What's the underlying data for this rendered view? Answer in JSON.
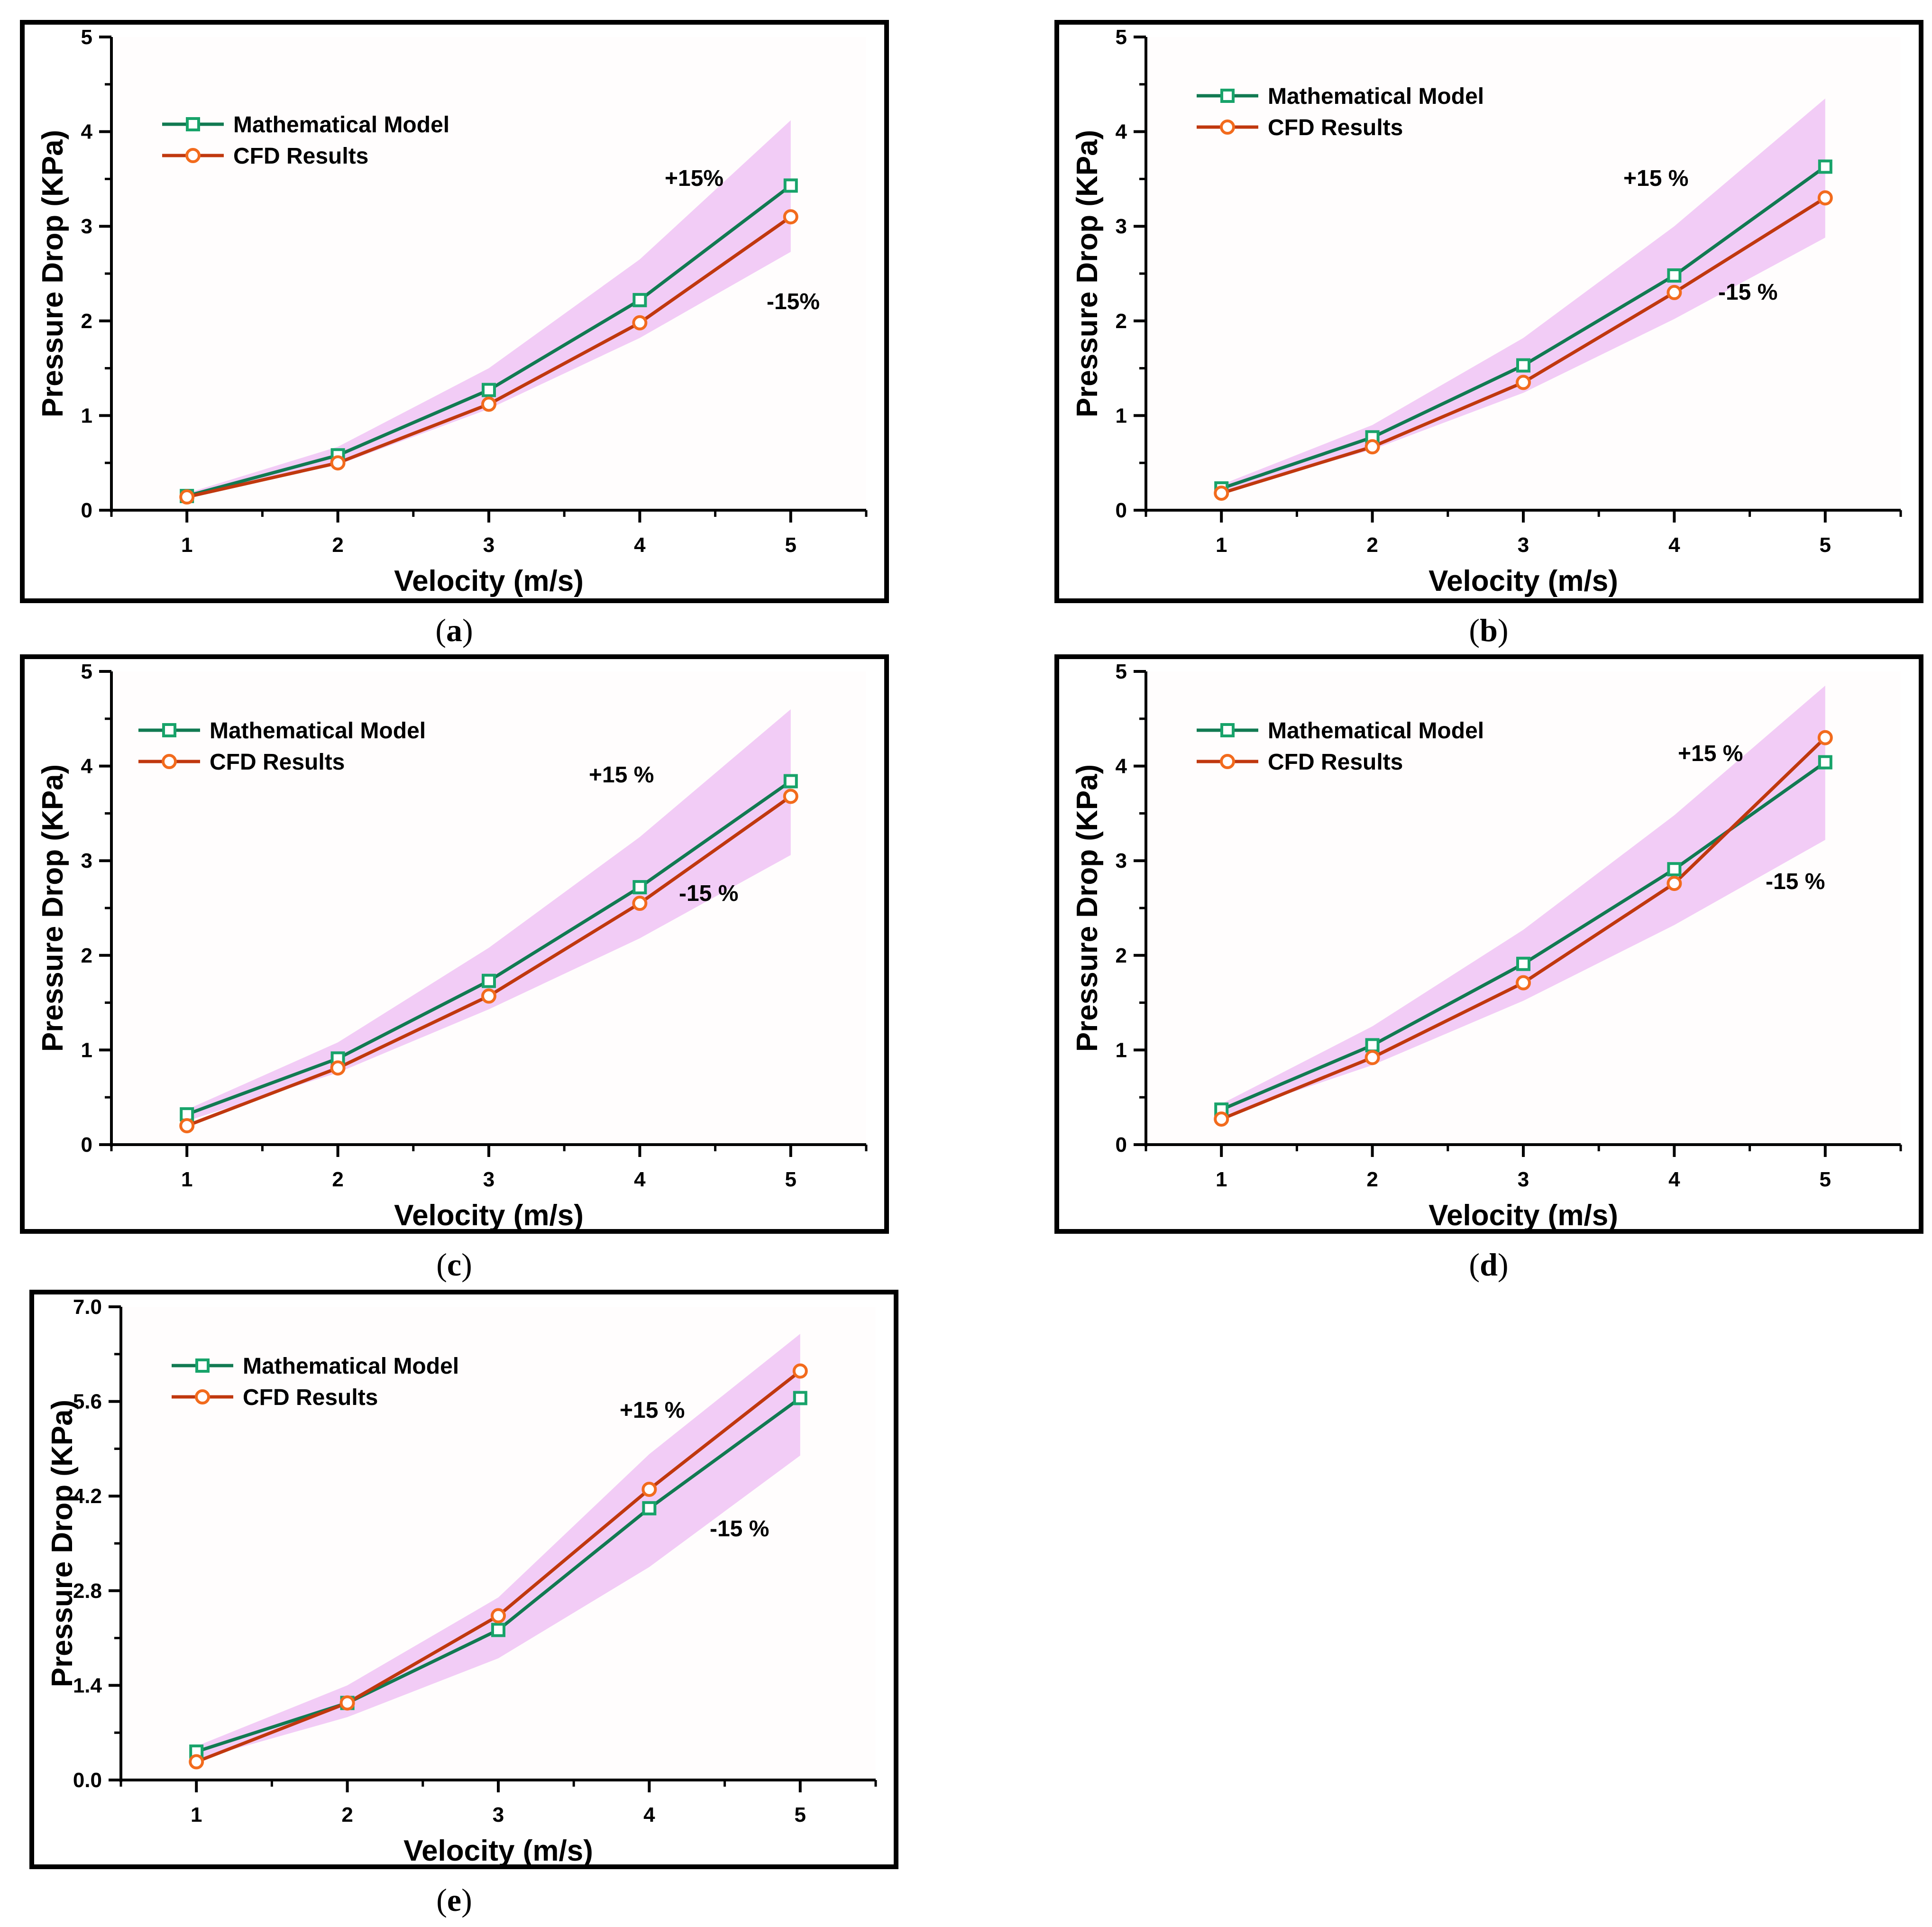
{
  "panels": [
    {
      "caption": "a",
      "chart_data": {
        "type": "line",
        "xlabel": "Velocity (m/s)",
        "ylabel": "Pressure Drop (KPa)",
        "x": [
          1,
          2,
          3,
          4,
          5
        ],
        "xlim": [
          0.5,
          5.5
        ],
        "ylim": [
          0,
          5
        ],
        "yticks": [
          0,
          1,
          2,
          3,
          4,
          5
        ],
        "ytick_labels": [
          "0",
          "1",
          "2",
          "3",
          "4",
          "5"
        ],
        "series": [
          {
            "name": "Mathematical Model",
            "values": [
              0.15,
              0.58,
              1.27,
              2.22,
              3.43
            ]
          },
          {
            "name": "CFD Results",
            "values": [
              0.14,
              0.5,
              1.12,
              1.98,
              3.1
            ]
          }
        ],
        "band_label_upper": "+15%",
        "band_label_lower": "-15%",
        "band_upper": [
          0.18,
          0.67,
          1.5,
          2.65,
          4.12
        ],
        "band_lower": [
          0.13,
          0.48,
          1.07,
          1.82,
          2.73
        ]
      }
    },
    {
      "caption": "b",
      "chart_data": {
        "type": "line",
        "xlabel": "Velocity (m/s)",
        "ylabel": "Pressure Drop (KPa)",
        "x": [
          1,
          2,
          3,
          4,
          5
        ],
        "xlim": [
          0.5,
          5.5
        ],
        "ylim": [
          0,
          5
        ],
        "yticks": [
          0,
          1,
          2,
          3,
          4,
          5
        ],
        "ytick_labels": [
          "0",
          "1",
          "2",
          "3",
          "4",
          "5"
        ],
        "series": [
          {
            "name": "Mathematical Model",
            "values": [
              0.23,
              0.77,
              1.53,
              2.48,
              3.63
            ]
          },
          {
            "name": "CFD Results",
            "values": [
              0.18,
              0.67,
              1.35,
              2.3,
              3.3
            ]
          }
        ],
        "band_label_upper": "+15 %",
        "band_label_lower": "-15 %",
        "band_upper": [
          0.27,
          0.9,
          1.82,
          3.0,
          4.35
        ],
        "band_lower": [
          0.19,
          0.64,
          1.24,
          2.02,
          2.88
        ]
      }
    },
    {
      "caption": "c",
      "chart_data": {
        "type": "line",
        "xlabel": "Velocity (m/s)",
        "ylabel": "Pressure Drop (KPa)",
        "x": [
          1,
          2,
          3,
          4,
          5
        ],
        "xlim": [
          0.5,
          5.5
        ],
        "ylim": [
          0,
          5
        ],
        "yticks": [
          0,
          1,
          2,
          3,
          4,
          5
        ],
        "ytick_labels": [
          "0",
          "1",
          "2",
          "3",
          "4",
          "5"
        ],
        "series": [
          {
            "name": "Mathematical Model",
            "values": [
              0.32,
              0.91,
              1.73,
              2.72,
              3.84
            ]
          },
          {
            "name": "CFD Results",
            "values": [
              0.2,
              0.81,
              1.57,
              2.55,
              3.68
            ]
          }
        ],
        "band_label_upper": "+15 %",
        "band_label_lower": "-15 %",
        "band_upper": [
          0.37,
          1.08,
          2.08,
          3.25,
          4.6
        ],
        "band_lower": [
          0.25,
          0.76,
          1.43,
          2.18,
          3.06
        ]
      }
    },
    {
      "caption": "d",
      "chart_data": {
        "type": "line",
        "xlabel": "Velocity (m/s)",
        "ylabel": "Pressure Drop (KPa)",
        "x": [
          1,
          2,
          3,
          4,
          5
        ],
        "xlim": [
          0.5,
          5.5
        ],
        "ylim": [
          0,
          5
        ],
        "yticks": [
          0,
          1,
          2,
          3,
          4,
          5
        ],
        "ytick_labels": [
          "0",
          "1",
          "2",
          "3",
          "4",
          "5"
        ],
        "series": [
          {
            "name": "Mathematical Model",
            "values": [
              0.37,
              1.05,
              1.91,
              2.91,
              4.04
            ]
          },
          {
            "name": "CFD Results",
            "values": [
              0.27,
              0.92,
              1.71,
              2.76,
              4.3
            ]
          }
        ],
        "band_label_upper": "+15 %",
        "band_label_lower": "-15 %",
        "band_upper": [
          0.43,
          1.25,
          2.27,
          3.48,
          4.85
        ],
        "band_lower": [
          0.3,
          0.84,
          1.52,
          2.32,
          3.22
        ]
      }
    },
    {
      "caption": "e",
      "chart_data": {
        "type": "line",
        "xlabel": "Velocity (m/s)",
        "ylabel": "Pressure Drop (KPa)",
        "x": [
          1,
          2,
          3,
          4,
          5
        ],
        "xlim": [
          0.5,
          5.5
        ],
        "ylim": [
          0,
          7
        ],
        "yticks": [
          0,
          1.4,
          2.8,
          4.2,
          5.6,
          7.0
        ],
        "ytick_labels": [
          "0.0",
          "1.4",
          "2.8",
          "4.2",
          "5.6",
          "7.0"
        ],
        "series": [
          {
            "name": "Mathematical Model",
            "values": [
              0.42,
              1.14,
              2.22,
              4.02,
              5.65
            ]
          },
          {
            "name": "CFD Results",
            "values": [
              0.27,
              1.14,
              2.43,
              4.3,
              6.05
            ]
          }
        ],
        "band_label_upper": "+15 %",
        "band_label_lower": "-15 %",
        "band_upper": [
          0.5,
          1.4,
          2.7,
          4.82,
          6.6
        ],
        "band_lower": [
          0.3,
          0.93,
          1.8,
          3.15,
          4.8
        ]
      }
    }
  ],
  "colors": {
    "model": "#117a52",
    "model_marker": "#18a36a",
    "cfd": "#c0380e",
    "cfd_marker": "#f26b1d",
    "band": "#f1c9f6"
  }
}
